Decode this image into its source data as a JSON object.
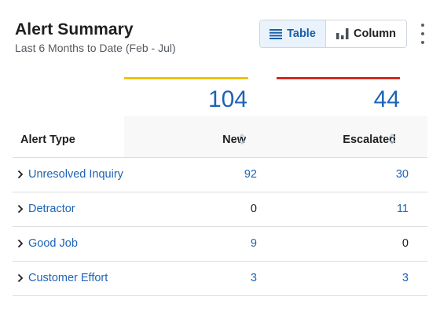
{
  "header": {
    "title": "Alert Summary",
    "subtitle": "Last 6 Months to Date (Feb - Jul)"
  },
  "view_toggle": {
    "table_label": "Table",
    "column_label": "Column",
    "selected": "Table"
  },
  "colors": {
    "new_accent": "#f2c200",
    "escalated_accent": "#d62a20",
    "link": "#1e63b5"
  },
  "totals": {
    "new": "104",
    "escalated": "44"
  },
  "table": {
    "columns": {
      "type": "Alert Type",
      "new": "New",
      "escalated": "Escalated"
    },
    "rows": [
      {
        "type": "Unresolved Inquiry",
        "new": "92",
        "escalated": "30",
        "new_link": true,
        "escalated_link": true
      },
      {
        "type": "Detractor",
        "new": "0",
        "escalated": "11",
        "new_link": false,
        "escalated_link": true
      },
      {
        "type": "Good Job",
        "new": "9",
        "escalated": "0",
        "new_link": true,
        "escalated_link": false
      },
      {
        "type": "Customer Effort",
        "new": "3",
        "escalated": "3",
        "new_link": true,
        "escalated_link": true
      }
    ]
  }
}
